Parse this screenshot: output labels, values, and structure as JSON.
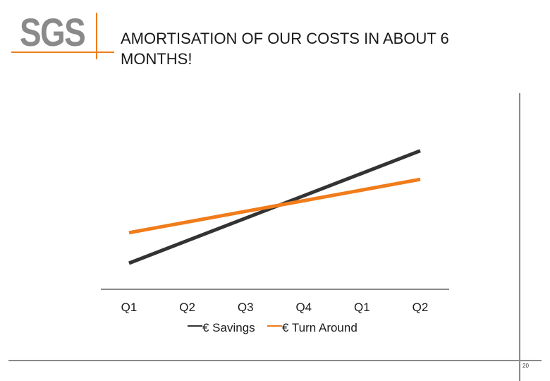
{
  "header": {
    "logo_text": "SGS",
    "title": "AMORTISATION OF OUR COSTS IN ABOUT 6 MONTHS!"
  },
  "footer": {
    "page_number": "20"
  },
  "colors": {
    "brand_orange": "#f07c1b",
    "brand_gray": "#8a8a8a",
    "savings_line": "#333333",
    "turnaround_line": "#f07c1b"
  },
  "chart_data": {
    "type": "line",
    "title": "AMORTISATION OF OUR COSTS IN ABOUT 6 MONTHS!",
    "categories": [
      "Q1",
      "Q2",
      "Q3",
      "Q4",
      "Q1",
      "Q2"
    ],
    "series": [
      {
        "name": "€ Savings",
        "color": "#333333",
        "start": 1.0,
        "end": 6.9
      },
      {
        "name": "€ Turn Around",
        "color": "#f07c1b",
        "start": 2.6,
        "end": 5.4
      }
    ],
    "legend_position": "bottom",
    "grid": false,
    "y_axis_shown": false
  }
}
